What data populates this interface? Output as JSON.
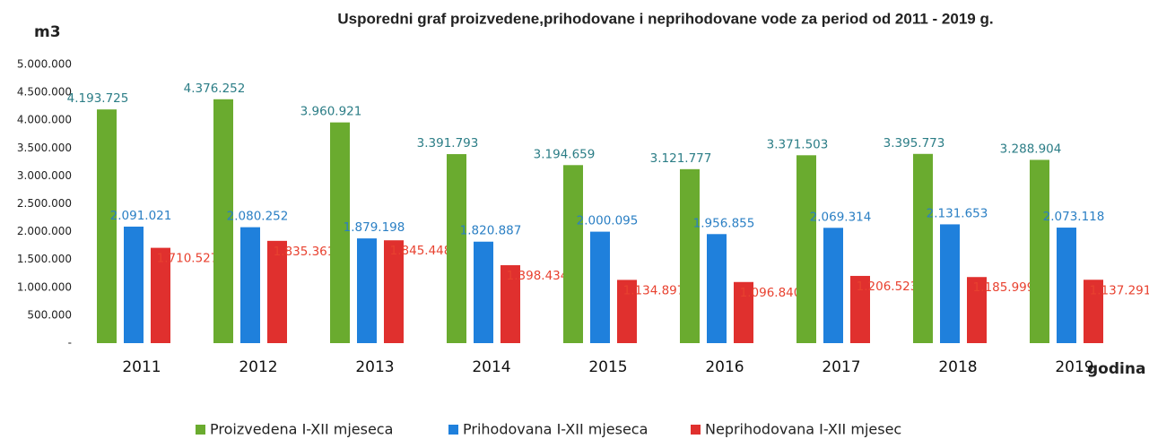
{
  "chart_data": {
    "type": "bar",
    "title": "Usporedni graf proizvedene,prihodovane i neprihodovane vode za period od 2011 - 2019 g.",
    "y_label": "m3",
    "x_label": "godina",
    "categories": [
      "2011",
      "2012",
      "2013",
      "2014",
      "2015",
      "2016",
      "2017",
      "2018",
      "2019"
    ],
    "series": [
      {
        "name": "Proizvedena I-XII mjeseca",
        "color": "#6aab2f",
        "label_color": "#2b7d86",
        "values": [
          4193725,
          4376252,
          3960921,
          3391793,
          3194659,
          3121777,
          3371503,
          3395773,
          3288904
        ],
        "value_labels": [
          "4.193.725",
          "4.376.252",
          "3.960.921",
          "3.391.793",
          "3.194.659",
          "3.121.777",
          "3.371.503",
          "3.395.773",
          "3.288.904"
        ]
      },
      {
        "name": "Prihodovana I-XII mjeseca",
        "color": "#1f80dc",
        "label_color": "#2a7fc4",
        "values": [
          2091021,
          2080252,
          1879198,
          1820887,
          2000095,
          1956855,
          2069314,
          2131653,
          2073118
        ],
        "value_labels": [
          "2.091.021",
          "2.080.252",
          "1.879.198",
          "1.820.887",
          "2.000.095",
          "1.956.855",
          "2.069.314",
          "2.131.653",
          "2.073.118"
        ]
      },
      {
        "name": "Neprihodovana I-XII mjesec",
        "color": "#e0302e",
        "label_color": "#e8412f",
        "values": [
          1710527,
          1835361,
          1845448,
          1398434,
          1134897,
          1096840,
          1206523,
          1185999,
          1137291
        ],
        "value_labels": [
          "1.710.527",
          "1.835.361",
          "1.845.448",
          "1.398.434",
          "1.134.897",
          "1.096.840",
          "1.206.523",
          "1.185.999",
          "1.137.291"
        ]
      }
    ],
    "ylim": [
      0,
      5000000
    ],
    "yticks": [
      {
        "value": 0,
        "label": "-"
      },
      {
        "value": 500000,
        "label": "500.000"
      },
      {
        "value": 1000000,
        "label": "1.000.000"
      },
      {
        "value": 1500000,
        "label": "1.500.000"
      },
      {
        "value": 2000000,
        "label": "2.000.000"
      },
      {
        "value": 2500000,
        "label": "2.500.000"
      },
      {
        "value": 3000000,
        "label": "3.000.000"
      },
      {
        "value": 3500000,
        "label": "3.500.000"
      },
      {
        "value": 4000000,
        "label": "4.000.000"
      },
      {
        "value": 4500000,
        "label": "4.500.000"
      },
      {
        "value": 5000000,
        "label": "5.000.000"
      }
    ],
    "grid": false
  }
}
